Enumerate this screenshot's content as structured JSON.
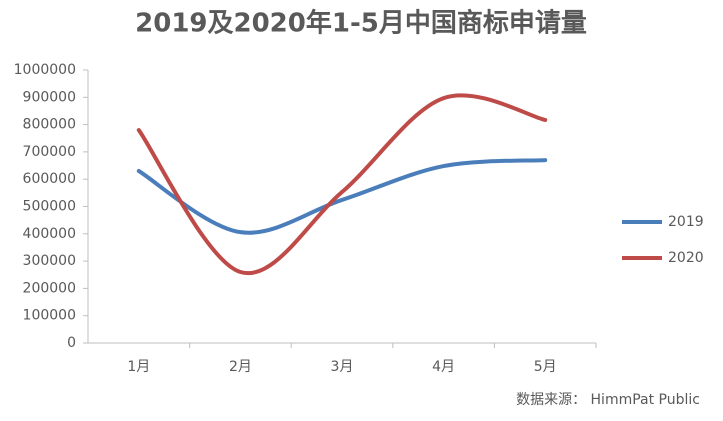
{
  "chart_data": {
    "type": "line",
    "title": "2019及2020年1-5月中国商标申请量",
    "categories": [
      "1月",
      "2月",
      "3月",
      "4月",
      "5月"
    ],
    "series": [
      {
        "name": "2019",
        "color": "#4a7ebb",
        "values": [
          630000,
          406000,
          524000,
          648000,
          670000
        ]
      },
      {
        "name": "2020",
        "color": "#be4b48",
        "values": [
          780000,
          260000,
          553000,
          897000,
          817000
        ]
      }
    ],
    "ylim": [
      0,
      1000000
    ],
    "yticks": [
      0,
      100000,
      200000,
      300000,
      400000,
      500000,
      600000,
      700000,
      800000,
      900000,
      1000000
    ],
    "smooth": true,
    "legend": "right",
    "source": "数据来源： HimmPat Public"
  }
}
